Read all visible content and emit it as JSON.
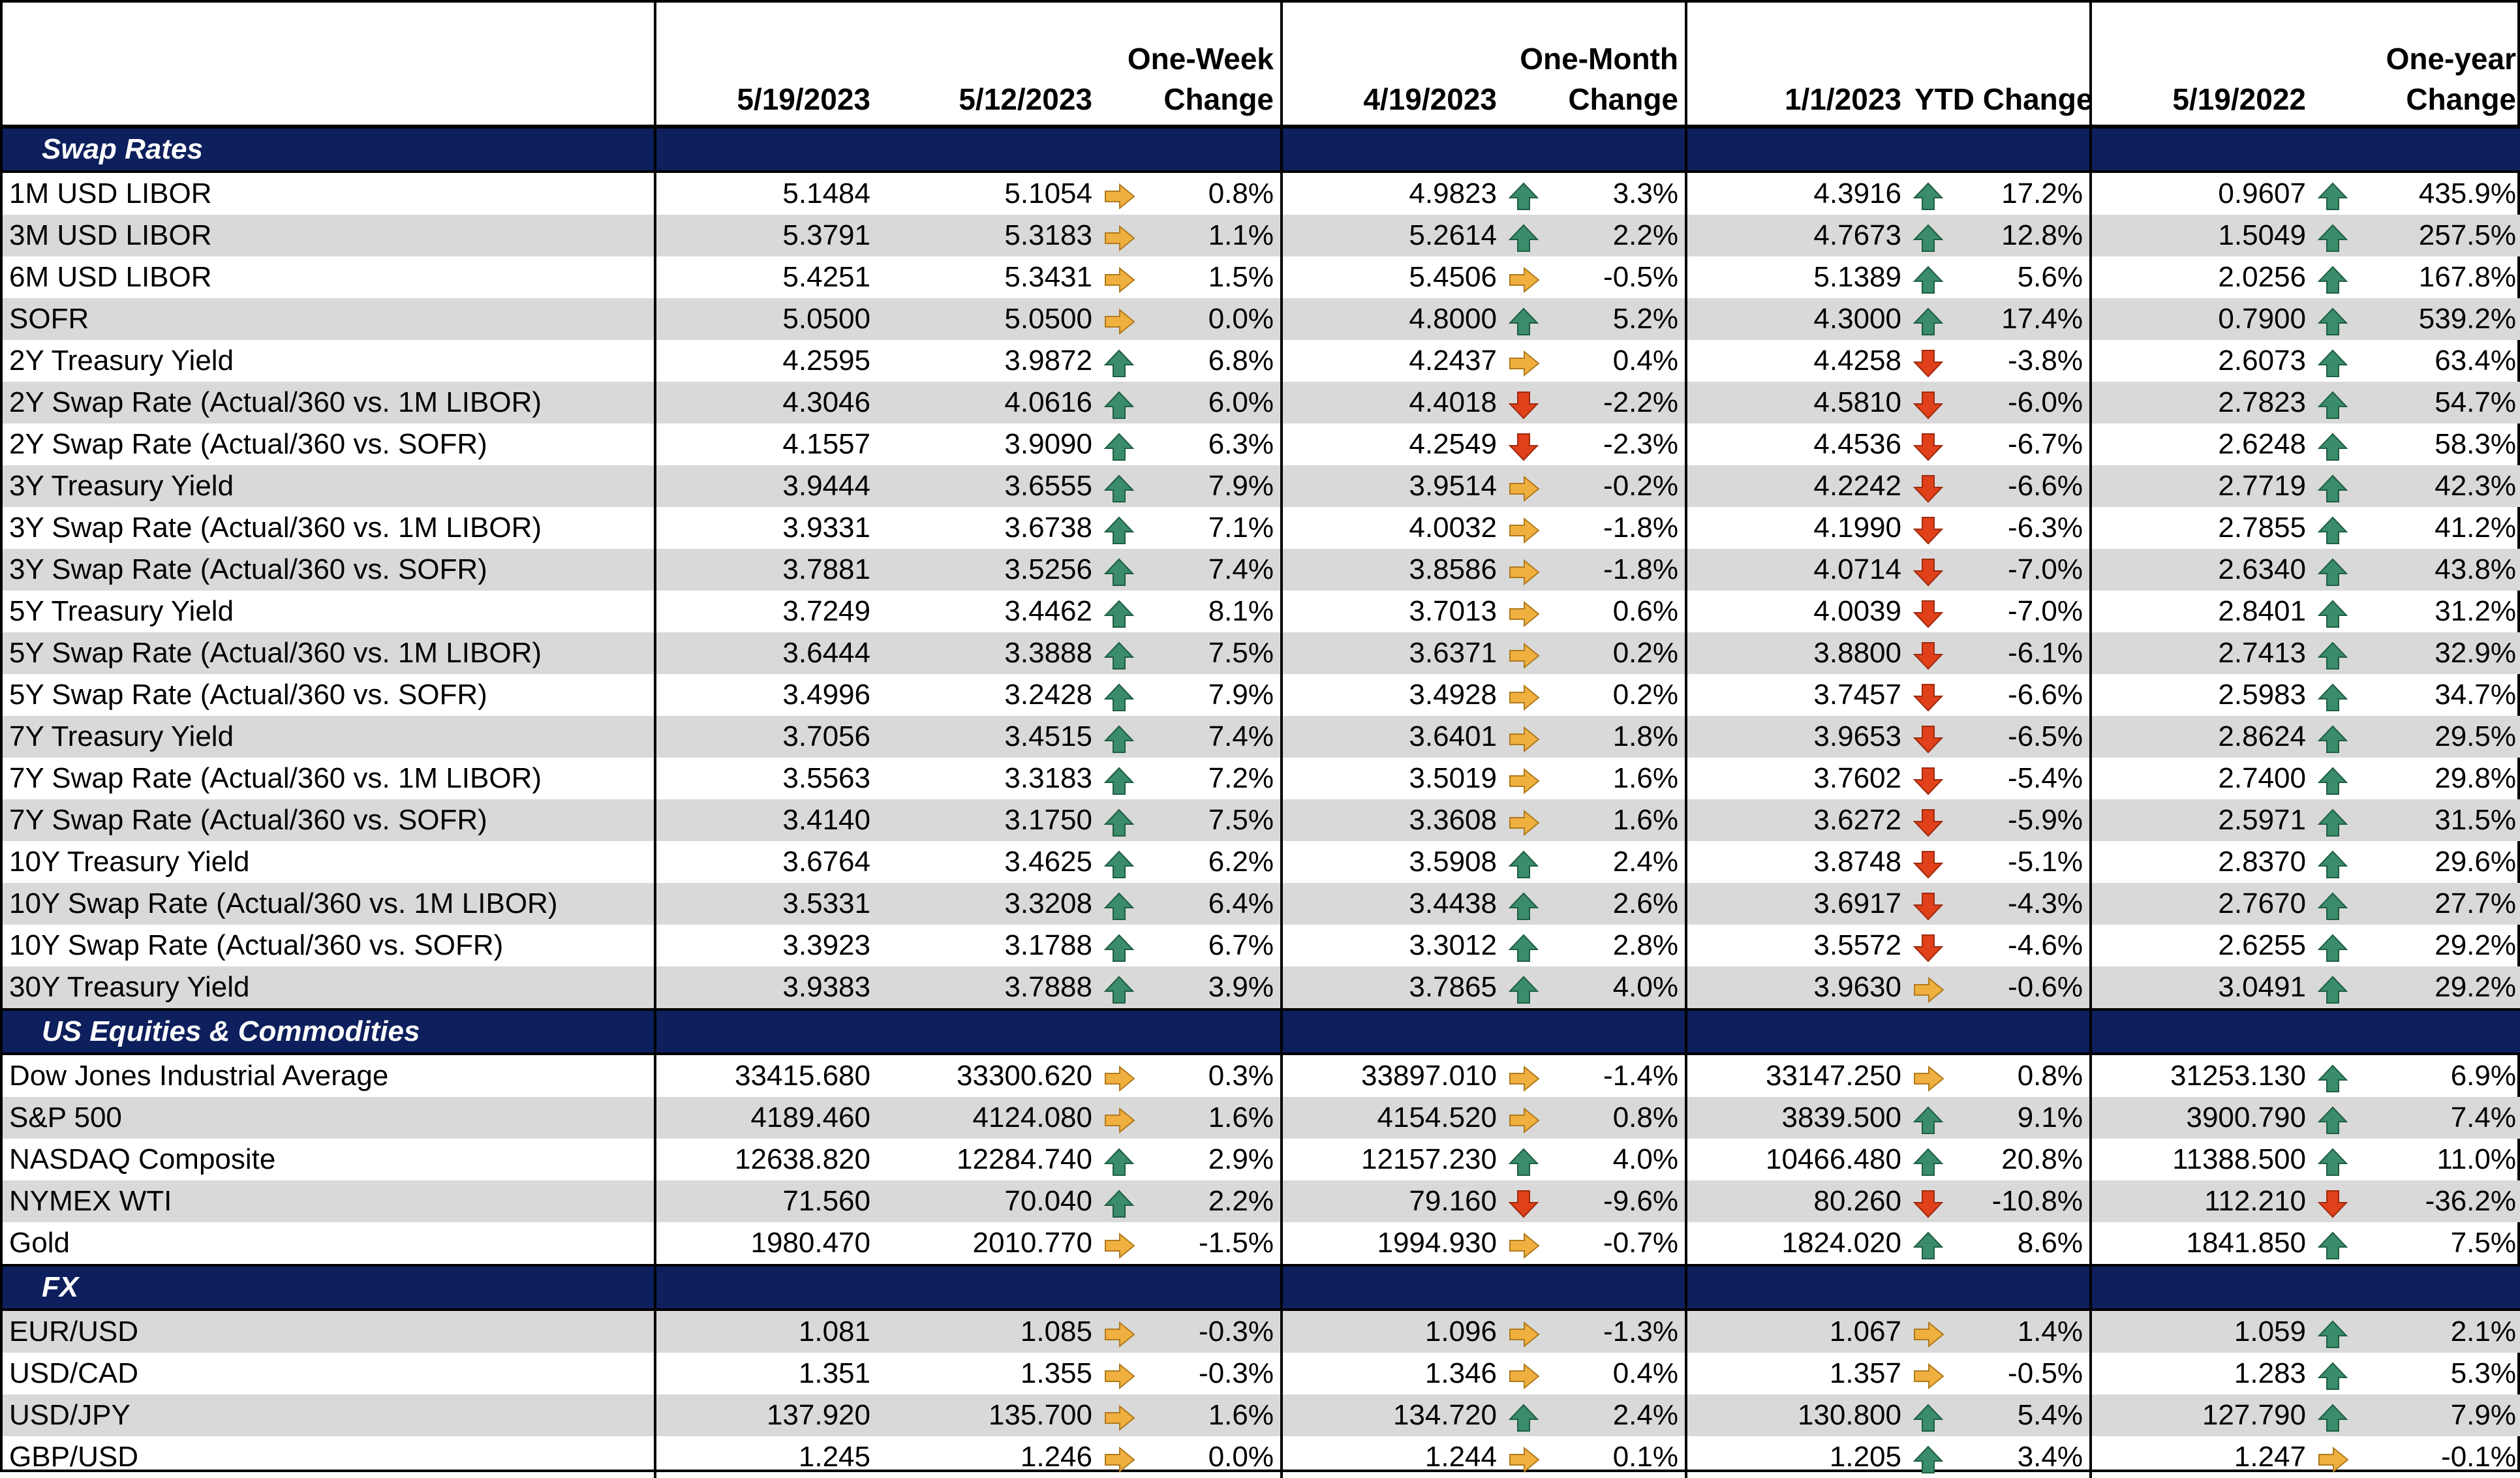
{
  "headers": {
    "col_date1": "5/19/2023",
    "col_date2": "5/12/2023",
    "col_week_line1": "One-Week",
    "col_week_line2": "Change",
    "col_date3": "4/19/2023",
    "col_month_line1": "One-Month",
    "col_month_line2": "Change",
    "col_date4": "1/1/2023",
    "col_ytd": "YTD Change",
    "col_date5": "5/19/2022",
    "col_year_line1": "One-year",
    "col_year_line2": "Change"
  },
  "colors": {
    "section_bg": "#0d1f5c",
    "shade": "#d9d9d9",
    "up": "#3a8c6a",
    "down": "#e0401a",
    "flat": "#f0b040"
  },
  "sections": [
    {
      "title": "Swap Rates",
      "rows": [
        {
          "label": "1M USD LIBOR",
          "v1": "5.1484",
          "v2": "5.1054",
          "a1": "flat",
          "c1": "0.8%",
          "v3": "4.9823",
          "a2": "up",
          "c2": "3.3%",
          "v4": "4.3916",
          "a3": "up",
          "c3": "17.2%",
          "v5": "0.9607",
          "a4": "up",
          "c4": "435.9%"
        },
        {
          "label": "3M USD LIBOR",
          "v1": "5.3791",
          "v2": "5.3183",
          "a1": "flat",
          "c1": "1.1%",
          "v3": "5.2614",
          "a2": "up",
          "c2": "2.2%",
          "v4": "4.7673",
          "a3": "up",
          "c3": "12.8%",
          "v5": "1.5049",
          "a4": "up",
          "c4": "257.5%"
        },
        {
          "label": "6M USD LIBOR",
          "v1": "5.4251",
          "v2": "5.3431",
          "a1": "flat",
          "c1": "1.5%",
          "v3": "5.4506",
          "a2": "flat",
          "c2": "-0.5%",
          "v4": "5.1389",
          "a3": "up",
          "c3": "5.6%",
          "v5": "2.0256",
          "a4": "up",
          "c4": "167.8%"
        },
        {
          "label": "SOFR",
          "v1": "5.0500",
          "v2": "5.0500",
          "a1": "flat",
          "c1": "0.0%",
          "v3": "4.8000",
          "a2": "up",
          "c2": "5.2%",
          "v4": "4.3000",
          "a3": "up",
          "c3": "17.4%",
          "v5": "0.7900",
          "a4": "up",
          "c4": "539.2%"
        },
        {
          "label": "2Y Treasury Yield",
          "v1": "4.2595",
          "v2": "3.9872",
          "a1": "up",
          "c1": "6.8%",
          "v3": "4.2437",
          "a2": "flat",
          "c2": "0.4%",
          "v4": "4.4258",
          "a3": "down",
          "c3": "-3.8%",
          "v5": "2.6073",
          "a4": "up",
          "c4": "63.4%"
        },
        {
          "label": "2Y Swap Rate (Actual/360 vs. 1M LIBOR)",
          "v1": "4.3046",
          "v2": "4.0616",
          "a1": "up",
          "c1": "6.0%",
          "v3": "4.4018",
          "a2": "down",
          "c2": "-2.2%",
          "v4": "4.5810",
          "a3": "down",
          "c3": "-6.0%",
          "v5": "2.7823",
          "a4": "up",
          "c4": "54.7%"
        },
        {
          "label": "2Y Swap Rate (Actual/360 vs. SOFR)",
          "v1": "4.1557",
          "v2": "3.9090",
          "a1": "up",
          "c1": "6.3%",
          "v3": "4.2549",
          "a2": "down",
          "c2": "-2.3%",
          "v4": "4.4536",
          "a3": "down",
          "c3": "-6.7%",
          "v5": "2.6248",
          "a4": "up",
          "c4": "58.3%"
        },
        {
          "label": "3Y Treasury Yield",
          "v1": "3.9444",
          "v2": "3.6555",
          "a1": "up",
          "c1": "7.9%",
          "v3": "3.9514",
          "a2": "flat",
          "c2": "-0.2%",
          "v4": "4.2242",
          "a3": "down",
          "c3": "-6.6%",
          "v5": "2.7719",
          "a4": "up",
          "c4": "42.3%"
        },
        {
          "label": "3Y Swap Rate (Actual/360 vs. 1M LIBOR)",
          "v1": "3.9331",
          "v2": "3.6738",
          "a1": "up",
          "c1": "7.1%",
          "v3": "4.0032",
          "a2": "flat",
          "c2": "-1.8%",
          "v4": "4.1990",
          "a3": "down",
          "c3": "-6.3%",
          "v5": "2.7855",
          "a4": "up",
          "c4": "41.2%"
        },
        {
          "label": "3Y Swap Rate (Actual/360 vs. SOFR)",
          "v1": "3.7881",
          "v2": "3.5256",
          "a1": "up",
          "c1": "7.4%",
          "v3": "3.8586",
          "a2": "flat",
          "c2": "-1.8%",
          "v4": "4.0714",
          "a3": "down",
          "c3": "-7.0%",
          "v5": "2.6340",
          "a4": "up",
          "c4": "43.8%"
        },
        {
          "label": "5Y Treasury Yield",
          "v1": "3.7249",
          "v2": "3.4462",
          "a1": "up",
          "c1": "8.1%",
          "v3": "3.7013",
          "a2": "flat",
          "c2": "0.6%",
          "v4": "4.0039",
          "a3": "down",
          "c3": "-7.0%",
          "v5": "2.8401",
          "a4": "up",
          "c4": "31.2%"
        },
        {
          "label": "5Y Swap Rate (Actual/360 vs. 1M LIBOR)",
          "v1": "3.6444",
          "v2": "3.3888",
          "a1": "up",
          "c1": "7.5%",
          "v3": "3.6371",
          "a2": "flat",
          "c2": "0.2%",
          "v4": "3.8800",
          "a3": "down",
          "c3": "-6.1%",
          "v5": "2.7413",
          "a4": "up",
          "c4": "32.9%"
        },
        {
          "label": "5Y Swap Rate (Actual/360 vs. SOFR)",
          "v1": "3.4996",
          "v2": "3.2428",
          "a1": "up",
          "c1": "7.9%",
          "v3": "3.4928",
          "a2": "flat",
          "c2": "0.2%",
          "v4": "3.7457",
          "a3": "down",
          "c3": "-6.6%",
          "v5": "2.5983",
          "a4": "up",
          "c4": "34.7%"
        },
        {
          "label": "7Y Treasury Yield",
          "v1": "3.7056",
          "v2": "3.4515",
          "a1": "up",
          "c1": "7.4%",
          "v3": "3.6401",
          "a2": "flat",
          "c2": "1.8%",
          "v4": "3.9653",
          "a3": "down",
          "c3": "-6.5%",
          "v5": "2.8624",
          "a4": "up",
          "c4": "29.5%"
        },
        {
          "label": "7Y Swap Rate (Actual/360 vs. 1M LIBOR)",
          "v1": "3.5563",
          "v2": "3.3183",
          "a1": "up",
          "c1": "7.2%",
          "v3": "3.5019",
          "a2": "flat",
          "c2": "1.6%",
          "v4": "3.7602",
          "a3": "down",
          "c3": "-5.4%",
          "v5": "2.7400",
          "a4": "up",
          "c4": "29.8%"
        },
        {
          "label": "7Y Swap Rate (Actual/360 vs. SOFR)",
          "v1": "3.4140",
          "v2": "3.1750",
          "a1": "up",
          "c1": "7.5%",
          "v3": "3.3608",
          "a2": "flat",
          "c2": "1.6%",
          "v4": "3.6272",
          "a3": "down",
          "c3": "-5.9%",
          "v5": "2.5971",
          "a4": "up",
          "c4": "31.5%"
        },
        {
          "label": "10Y Treasury Yield",
          "v1": "3.6764",
          "v2": "3.4625",
          "a1": "up",
          "c1": "6.2%",
          "v3": "3.5908",
          "a2": "up",
          "c2": "2.4%",
          "v4": "3.8748",
          "a3": "down",
          "c3": "-5.1%",
          "v5": "2.8370",
          "a4": "up",
          "c4": "29.6%"
        },
        {
          "label": "10Y Swap Rate (Actual/360 vs. 1M LIBOR)",
          "v1": "3.5331",
          "v2": "3.3208",
          "a1": "up",
          "c1": "6.4%",
          "v3": "3.4438",
          "a2": "up",
          "c2": "2.6%",
          "v4": "3.6917",
          "a3": "down",
          "c3": "-4.3%",
          "v5": "2.7670",
          "a4": "up",
          "c4": "27.7%"
        },
        {
          "label": "10Y Swap Rate (Actual/360 vs. SOFR)",
          "v1": "3.3923",
          "v2": "3.1788",
          "a1": "up",
          "c1": "6.7%",
          "v3": "3.3012",
          "a2": "up",
          "c2": "2.8%",
          "v4": "3.5572",
          "a3": "down",
          "c3": "-4.6%",
          "v5": "2.6255",
          "a4": "up",
          "c4": "29.2%"
        },
        {
          "label": "30Y Treasury Yield",
          "v1": "3.9383",
          "v2": "3.7888",
          "a1": "up",
          "c1": "3.9%",
          "v3": "3.7865",
          "a2": "up",
          "c2": "4.0%",
          "v4": "3.9630",
          "a3": "flat",
          "c3": "-0.6%",
          "v5": "3.0491",
          "a4": "up",
          "c4": "29.2%"
        }
      ]
    },
    {
      "title": "US Equities & Commodities",
      "rows": [
        {
          "label": "Dow Jones Industrial Average",
          "v1": "33415.680",
          "v2": "33300.620",
          "a1": "flat",
          "c1": "0.3%",
          "v3": "33897.010",
          "a2": "flat",
          "c2": "-1.4%",
          "v4": "33147.250",
          "a3": "flat",
          "c3": "0.8%",
          "v5": "31253.130",
          "a4": "up",
          "c4": "6.9%"
        },
        {
          "label": "S&P 500",
          "v1": "4189.460",
          "v2": "4124.080",
          "a1": "flat",
          "c1": "1.6%",
          "v3": "4154.520",
          "a2": "flat",
          "c2": "0.8%",
          "v4": "3839.500",
          "a3": "up",
          "c3": "9.1%",
          "v5": "3900.790",
          "a4": "up",
          "c4": "7.4%"
        },
        {
          "label": "NASDAQ Composite",
          "v1": "12638.820",
          "v2": "12284.740",
          "a1": "up",
          "c1": "2.9%",
          "v3": "12157.230",
          "a2": "up",
          "c2": "4.0%",
          "v4": "10466.480",
          "a3": "up",
          "c3": "20.8%",
          "v5": "11388.500",
          "a4": "up",
          "c4": "11.0%"
        },
        {
          "label": "NYMEX WTI",
          "v1": "71.560",
          "v2": "70.040",
          "a1": "up",
          "c1": "2.2%",
          "v3": "79.160",
          "a2": "down",
          "c2": "-9.6%",
          "v4": "80.260",
          "a3": "down",
          "c3": "-10.8%",
          "v5": "112.210",
          "a4": "down",
          "c4": "-36.2%"
        },
        {
          "label": "Gold",
          "v1": "1980.470",
          "v2": "2010.770",
          "a1": "flat",
          "c1": "-1.5%",
          "v3": "1994.930",
          "a2": "flat",
          "c2": "-0.7%",
          "v4": "1824.020",
          "a3": "up",
          "c3": "8.6%",
          "v5": "1841.850",
          "a4": "up",
          "c4": "7.5%"
        }
      ]
    },
    {
      "title": "FX",
      "rows": [
        {
          "label": "EUR/USD",
          "v1": "1.081",
          "v2": "1.085",
          "a1": "flat",
          "c1": "-0.3%",
          "v3": "1.096",
          "a2": "flat",
          "c2": "-1.3%",
          "v4": "1.067",
          "a3": "flat",
          "c3": "1.4%",
          "v5": "1.059",
          "a4": "up",
          "c4": "2.1%"
        },
        {
          "label": "USD/CAD",
          "v1": "1.351",
          "v2": "1.355",
          "a1": "flat",
          "c1": "-0.3%",
          "v3": "1.346",
          "a2": "flat",
          "c2": "0.4%",
          "v4": "1.357",
          "a3": "flat",
          "c3": "-0.5%",
          "v5": "1.283",
          "a4": "up",
          "c4": "5.3%"
        },
        {
          "label": "USD/JPY",
          "v1": "137.920",
          "v2": "135.700",
          "a1": "flat",
          "c1": "1.6%",
          "v3": "134.720",
          "a2": "up",
          "c2": "2.4%",
          "v4": "130.800",
          "a3": "up",
          "c3": "5.4%",
          "v5": "127.790",
          "a4": "up",
          "c4": "7.9%"
        },
        {
          "label": "GBP/USD",
          "v1": "1.245",
          "v2": "1.246",
          "a1": "flat",
          "c1": "0.0%",
          "v3": "1.244",
          "a2": "flat",
          "c2": "0.1%",
          "v4": "1.205",
          "a3": "up",
          "c3": "3.4%",
          "v5": "1.247",
          "a4": "flat",
          "c4": "-0.1%"
        }
      ]
    }
  ]
}
